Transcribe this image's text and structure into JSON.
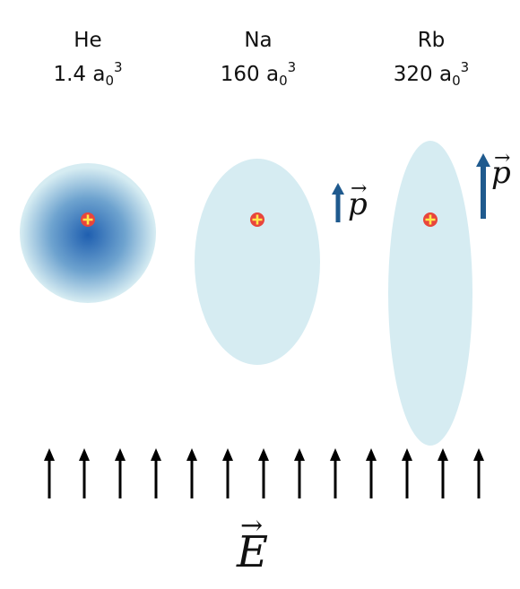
{
  "atoms": [
    {
      "symbol": "He",
      "polarizability_value": "1.4",
      "unit_base": "a",
      "unit_sub": "0",
      "unit_sup": "3"
    },
    {
      "symbol": "Na",
      "polarizability_value": "160",
      "unit_base": "a",
      "unit_sub": "0",
      "unit_sup": "3"
    },
    {
      "symbol": "Rb",
      "polarizability_value": "320",
      "unit_base": "a",
      "unit_sub": "0",
      "unit_sup": "3"
    }
  ],
  "dipole_label": "p",
  "field_label": "E",
  "colors": {
    "cloud_core": "#1f5fb0",
    "cloud_edge": "#d6ecf2",
    "nucleus": "#e8453c",
    "nucleus_plus": "#ffe84a",
    "dipole_arrow": "#1f5a8e",
    "field_arrow": "#000000"
  }
}
